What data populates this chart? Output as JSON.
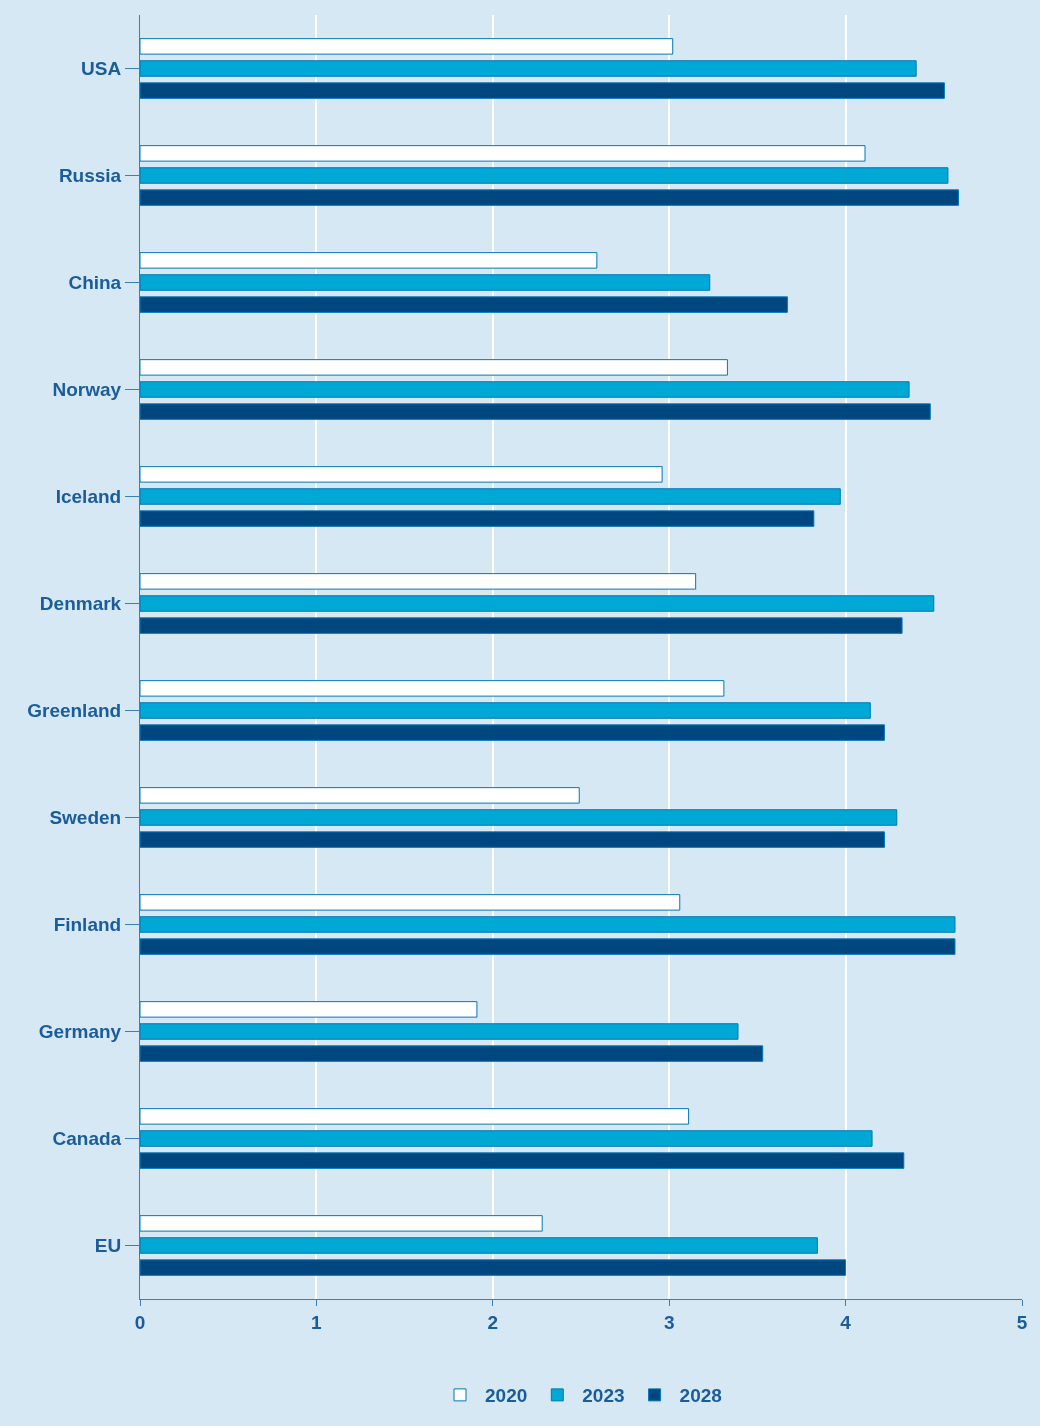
{
  "chart_data": {
    "type": "bar",
    "orientation": "horizontal",
    "categories": [
      "USA",
      "Russia",
      "China",
      "Norway",
      "Iceland",
      "Denmark",
      "Greenland",
      "Sweden",
      "Finland",
      "Germany",
      "Canada",
      "EU"
    ],
    "series": [
      {
        "name": "2020",
        "color": "#ffffff",
        "values": [
          3.02,
          4.11,
          2.59,
          3.33,
          2.96,
          3.15,
          3.31,
          2.49,
          3.06,
          1.91,
          3.11,
          2.28
        ]
      },
      {
        "name": "2023",
        "color": "#00a8d6",
        "values": [
          4.4,
          4.58,
          3.23,
          4.36,
          3.97,
          4.5,
          4.14,
          4.29,
          4.62,
          3.39,
          4.15,
          3.84
        ]
      },
      {
        "name": "2028",
        "color": "#00467f",
        "values": [
          4.56,
          4.64,
          3.67,
          4.48,
          3.82,
          4.32,
          4.22,
          4.22,
          4.62,
          3.53,
          4.33,
          4.0
        ]
      }
    ],
    "xlim": [
      0,
      5
    ],
    "xticks": [
      0,
      1,
      2,
      3,
      4,
      5
    ],
    "grid": "x",
    "legend": "bottom"
  }
}
